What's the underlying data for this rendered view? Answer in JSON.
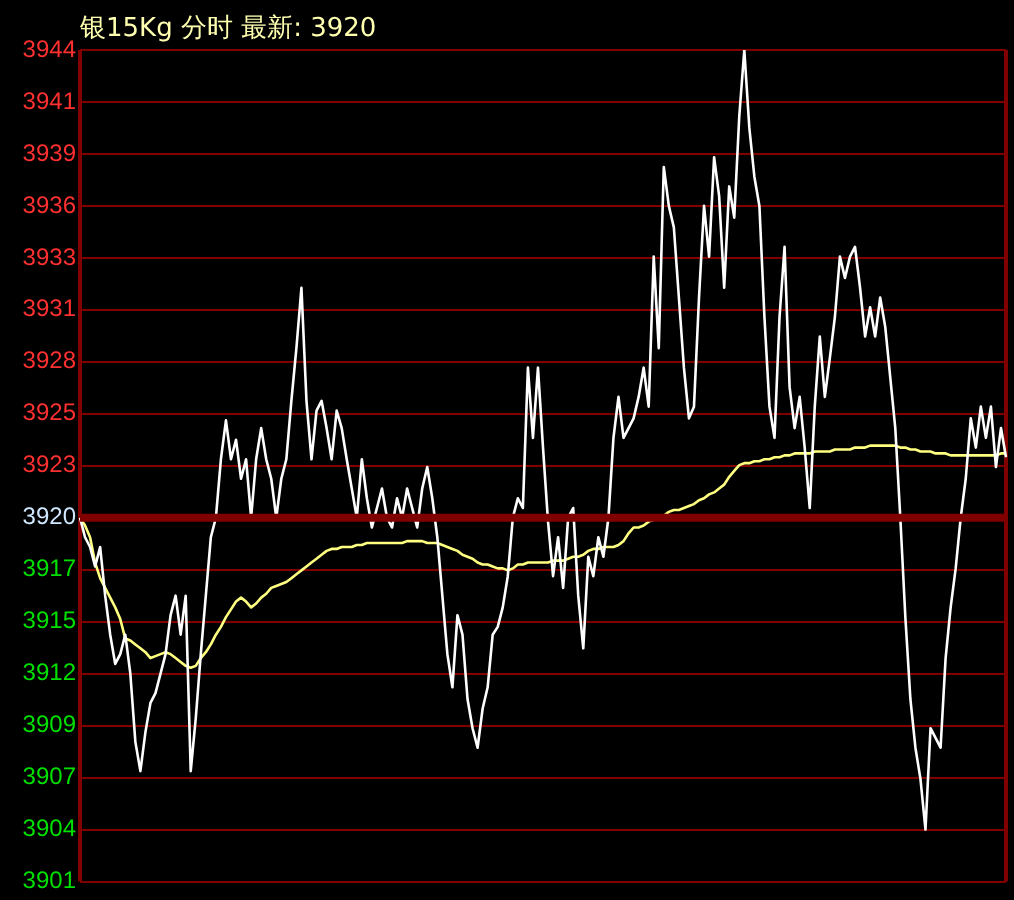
{
  "chart_data": {
    "type": "line",
    "title": "银15Kg 分时 最新: 3920",
    "categories": [
      null,
      null,
      null,
      null,
      null,
      null,
      null,
      null,
      null,
      null,
      null,
      null,
      null,
      null,
      null,
      null,
      null,
      null,
      null,
      null,
      null,
      null,
      null,
      null,
      null,
      null,
      null,
      null,
      null,
      null,
      null,
      null,
      null,
      null,
      null,
      null,
      null,
      null,
      null,
      null,
      null,
      null,
      null,
      null,
      null,
      null,
      null,
      null,
      null,
      null,
      null,
      null,
      null,
      null,
      null,
      null,
      null,
      null,
      null,
      null,
      null,
      null,
      null,
      null,
      null,
      null,
      null,
      null,
      null,
      null,
      null,
      null,
      null,
      null,
      null,
      null,
      null,
      null,
      null,
      null,
      null,
      null,
      null,
      null,
      null,
      null,
      null,
      null,
      null,
      null,
      null,
      null,
      null,
      null,
      null,
      null,
      null,
      null,
      null,
      null,
      null,
      null,
      null,
      null,
      null,
      null,
      null,
      null,
      null,
      null,
      null,
      null,
      null,
      null,
      null,
      null,
      null,
      null,
      null,
      null,
      null,
      null,
      null,
      null,
      null,
      null,
      null,
      null,
      null,
      null,
      null,
      null,
      null,
      null,
      null,
      null,
      null,
      null,
      null,
      null,
      null,
      null,
      null,
      null,
      null,
      null,
      null,
      null,
      null,
      null,
      null,
      null,
      null,
      null,
      null,
      null,
      null,
      null,
      null,
      null,
      null,
      null,
      null,
      null,
      null,
      null,
      null,
      null,
      null,
      null,
      null,
      null,
      null,
      null,
      null,
      null,
      null,
      null,
      null,
      null,
      null,
      null,
      null,
      null,
      null
    ],
    "series": [
      {
        "color": "#ffffff",
        "values": [
          3920,
          3919,
          3918.5,
          3917.5,
          3918.5,
          3916,
          3914,
          3912.5,
          3913,
          3914,
          3912,
          3908.5,
          3907,
          3909,
          3910.5,
          3911,
          3912,
          3913,
          3915,
          3916,
          3914,
          3916,
          3907,
          3909.7,
          3913,
          3916,
          3919,
          3920,
          3923,
          3925,
          3923,
          3924,
          3922,
          3923,
          3920,
          3923,
          3924.6,
          3923,
          3922,
          3920,
          3922,
          3923,
          3926,
          3928.7,
          3931.8,
          3926,
          3923,
          3925.5,
          3926,
          3924.6,
          3923,
          3925.5,
          3924.6,
          3923,
          3921.5,
          3920,
          3923,
          3921,
          3919.5,
          3920.5,
          3921.5,
          3920,
          3919.5,
          3921,
          3920,
          3921.5,
          3920.5,
          3919.5,
          3921.5,
          3922.6,
          3921,
          3919,
          3916,
          3913,
          3911.3,
          3915,
          3914,
          3910.7,
          3909.2,
          3908.2,
          3910.2,
          3911.3,
          3914,
          3914.4,
          3915.4,
          3917,
          3920,
          3921,
          3920.5,
          3927.7,
          3924.1,
          3927.7,
          3923.6,
          3919.8,
          3917,
          3919,
          3916.4,
          3920,
          3920.5,
          3916,
          3913.3,
          3918,
          3917,
          3919,
          3918,
          3920,
          3924.1,
          3926.2,
          3924.1,
          3924.6,
          3925.1,
          3926.2,
          3927.7,
          3925.7,
          3933.4,
          3928.7,
          3938,
          3936,
          3934.9,
          3931.3,
          3927.7,
          3925.1,
          3925.7,
          3931.3,
          3936,
          3933.4,
          3938.5,
          3936.5,
          3931.8,
          3937,
          3935.4,
          3940.6,
          3944,
          3940,
          3937.5,
          3936,
          3930.3,
          3925.7,
          3924.1,
          3930.3,
          3933.9,
          3926.7,
          3924.6,
          3926.2,
          3923.6,
          3920.5,
          3925.7,
          3929.3,
          3926.2,
          3928.2,
          3930.3,
          3933.4,
          3932.3,
          3933.4,
          3933.9,
          3931.8,
          3929.3,
          3930.8,
          3929.3,
          3931.3,
          3929.8,
          3927.2,
          3924.6,
          3920,
          3914.9,
          3910.7,
          3908.2,
          3906.6,
          3904,
          3909.2,
          3908.7,
          3908.2,
          3912.8,
          3915.4,
          3917.4,
          3920,
          3922,
          3925.1,
          3923.6,
          3925.7,
          3924.1,
          3925.7,
          3922.6,
          3924.6,
          3923.1
        ]
      },
      {
        "color": "#ffff80",
        "values": [
          3920,
          3919.6,
          3919,
          3917.7,
          3916.9,
          3916.4,
          3915.9,
          3915.4,
          3914.8,
          3913.8,
          3913.7,
          3913.5,
          3913.3,
          3913.1,
          3912.8,
          3912.9,
          3913,
          3913.1,
          3913,
          3912.8,
          3912.6,
          3912.4,
          3912.3,
          3912.4,
          3912.8,
          3913.1,
          3913.5,
          3914,
          3914.4,
          3914.9,
          3915.3,
          3915.7,
          3915.9,
          3915.7,
          3915.4,
          3915.6,
          3915.9,
          3916.1,
          3916.4,
          3916.5,
          3916.6,
          3916.7,
          3916.9,
          3917.1,
          3917.3,
          3917.5,
          3917.7,
          3917.9,
          3918.1,
          3918.3,
          3918.4,
          3918.4,
          3918.5,
          3918.5,
          3918.5,
          3918.6,
          3918.6,
          3918.7,
          3918.7,
          3918.7,
          3918.7,
          3918.7,
          3918.7,
          3918.7,
          3918.7,
          3918.8,
          3918.8,
          3918.8,
          3918.8,
          3918.7,
          3918.7,
          3918.7,
          3918.6,
          3918.5,
          3918.4,
          3918.3,
          3918.1,
          3918,
          3917.9,
          3917.7,
          3917.6,
          3917.6,
          3917.5,
          3917.4,
          3917.4,
          3917.3,
          3917.4,
          3917.6,
          3917.6,
          3917.7,
          3917.7,
          3917.7,
          3917.7,
          3917.7,
          3917.8,
          3917.8,
          3917.8,
          3917.9,
          3918,
          3918,
          3918.1,
          3918.3,
          3918.4,
          3918.4,
          3918.5,
          3918.5,
          3918.5,
          3918.6,
          3918.8,
          3919.2,
          3919.5,
          3919.5,
          3919.6,
          3919.8,
          3919.9,
          3920,
          3920.1,
          3920.3,
          3920.4,
          3920.4,
          3920.5,
          3920.6,
          3920.7,
          3920.9,
          3921,
          3921.2,
          3921.3,
          3921.5,
          3921.7,
          3922.1,
          3922.4,
          3922.7,
          3922.8,
          3922.8,
          3922.9,
          3922.9,
          3923,
          3923,
          3923.1,
          3923.1,
          3923.2,
          3923.2,
          3923.3,
          3923.3,
          3923.3,
          3923.3,
          3923.4,
          3923.4,
          3923.4,
          3923.4,
          3923.5,
          3923.5,
          3923.5,
          3923.5,
          3923.6,
          3923.6,
          3923.6,
          3923.7,
          3923.7,
          3923.7,
          3923.7,
          3923.7,
          3923.7,
          3923.6,
          3923.6,
          3923.5,
          3923.5,
          3923.4,
          3923.4,
          3923.4,
          3923.3,
          3923.3,
          3923.3,
          3923.2,
          3923.2,
          3923.2,
          3923.2,
          3923.2,
          3923.2,
          3923.2,
          3923.2,
          3923.2,
          3923.2,
          3923.3,
          3923.3
        ]
      }
    ],
    "ylim": [
      3901.33,
      3944
    ],
    "yticks": [
      {
        "value": 3944,
        "label": "3944"
      },
      {
        "value": 3941.33,
        "label": "3941"
      },
      {
        "value": 3938.67,
        "label": "3939"
      },
      {
        "value": 3936,
        "label": "3936"
      },
      {
        "value": 3933.33,
        "label": "3933"
      },
      {
        "value": 3930.67,
        "label": "3931"
      },
      {
        "value": 3928,
        "label": "3928"
      },
      {
        "value": 3925.33,
        "label": "3925"
      },
      {
        "value": 3922.67,
        "label": "3923"
      },
      {
        "value": 3920,
        "label": "3920"
      },
      {
        "value": 3917.33,
        "label": "3917"
      },
      {
        "value": 3914.67,
        "label": "3915"
      },
      {
        "value": 3912,
        "label": "3912"
      },
      {
        "value": 3909.33,
        "label": "3909"
      },
      {
        "value": 3906.67,
        "label": "3907"
      },
      {
        "value": 3904,
        "label": "3904"
      },
      {
        "value": 3901.33,
        "label": "3901"
      }
    ],
    "ref_lines": [
      {
        "axis": "y",
        "value": 3920,
        "color": "#800000"
      }
    ],
    "grid": "y",
    "tick_labels": "y",
    "marker": "none",
    "line_style": "solid",
    "legend": false
  }
}
